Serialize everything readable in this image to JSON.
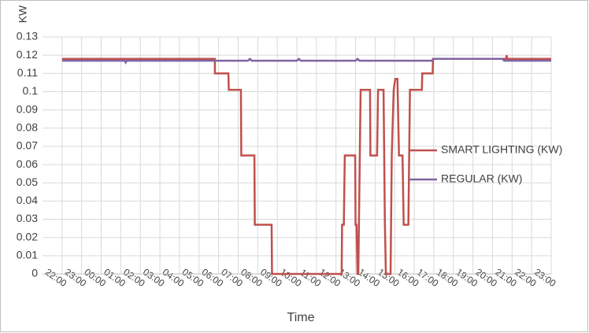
{
  "chart_data": {
    "type": "line",
    "y_label": "KW",
    "x_label": "Time",
    "xlim": [
      -1,
      25
    ],
    "ylim": [
      0,
      0.13
    ],
    "yticks": [
      0,
      0.01,
      0.02,
      0.03,
      0.04,
      0.05,
      0.06,
      0.07,
      0.08,
      0.09,
      0.1,
      0.11,
      0.12,
      0.13
    ],
    "xticks": [
      {
        "value": 0,
        "label": "22:00"
      },
      {
        "value": 1,
        "label": "23:00"
      },
      {
        "value": 2,
        "label": "00:00"
      },
      {
        "value": 3,
        "label": "01:00"
      },
      {
        "value": 4,
        "label": "02:00"
      },
      {
        "value": 5,
        "label": "03:00"
      },
      {
        "value": 6,
        "label": "04:00"
      },
      {
        "value": 7,
        "label": "05:00"
      },
      {
        "value": 8,
        "label": "06:00"
      },
      {
        "value": 9,
        "label": "07:00"
      },
      {
        "value": 10,
        "label": "08:00"
      },
      {
        "value": 11,
        "label": "09:00"
      },
      {
        "value": 12,
        "label": "10:00"
      },
      {
        "value": 13,
        "label": "11:00"
      },
      {
        "value": 14,
        "label": "12:00"
      },
      {
        "value": 15,
        "label": "13:00"
      },
      {
        "value": 16,
        "label": "14:00"
      },
      {
        "value": 17,
        "label": "15:00"
      },
      {
        "value": 18,
        "label": "16:00"
      },
      {
        "value": 19,
        "label": "17:00"
      },
      {
        "value": 20,
        "label": "18:00"
      },
      {
        "value": 21,
        "label": "19:00"
      },
      {
        "value": 22,
        "label": "20:00"
      },
      {
        "value": 23,
        "label": "21:00"
      },
      {
        "value": 24,
        "label": "22:00"
      },
      {
        "value": 25,
        "label": "23:00"
      }
    ],
    "grid": true,
    "series": [
      {
        "name": "SMART LIGHTING (KW)",
        "color": "#c0504d",
        "x": [
          0,
          7.81,
          7.81,
          8.5,
          8.52,
          9.14,
          9.16,
          9.83,
          9.85,
          10.71,
          10.73,
          14.29,
          14.31,
          14.4,
          14.45,
          14.98,
          15.0,
          15.05,
          15.1,
          15.14,
          15.26,
          15.74,
          15.76,
          16.1,
          16.15,
          16.43,
          16.5,
          16.55,
          16.79,
          16.85,
          16.95,
          17.03,
          17.14,
          17.22,
          17.4,
          17.46,
          17.7,
          17.78,
          18.39,
          18.41,
          18.94,
          18.96,
          22.7,
          22.72,
          22.76,
          25
        ],
        "values": [
          0.118,
          0.118,
          0.11,
          0.11,
          0.101,
          0.101,
          0.065,
          0.065,
          0.027,
          0.027,
          0,
          0,
          0.027,
          0.027,
          0.065,
          0.065,
          0.027,
          0.027,
          0,
          0,
          0.101,
          0.101,
          0.065,
          0.065,
          0.101,
          0.101,
          0.027,
          0,
          0,
          0.065,
          0.101,
          0.107,
          0.107,
          0.065,
          0.065,
          0.027,
          0.027,
          0.101,
          0.101,
          0.11,
          0.11,
          0.118,
          0.118,
          0.12,
          0.118,
          0.118
        ]
      },
      {
        "name": "REGULAR (KW)",
        "color": "#8064a2",
        "x": [
          0,
          3.2,
          3.25,
          3.3,
          9.5,
          9.6,
          9.7,
          12,
          12.1,
          12.2,
          15,
          15.1,
          15.2,
          18.9,
          19,
          22.5,
          22.6,
          25
        ],
        "values": [
          0.117,
          0.117,
          0.116,
          0.117,
          0.117,
          0.118,
          0.117,
          0.117,
          0.118,
          0.117,
          0.117,
          0.118,
          0.117,
          0.117,
          0.118,
          0.118,
          0.117,
          0.117
        ]
      }
    ]
  }
}
